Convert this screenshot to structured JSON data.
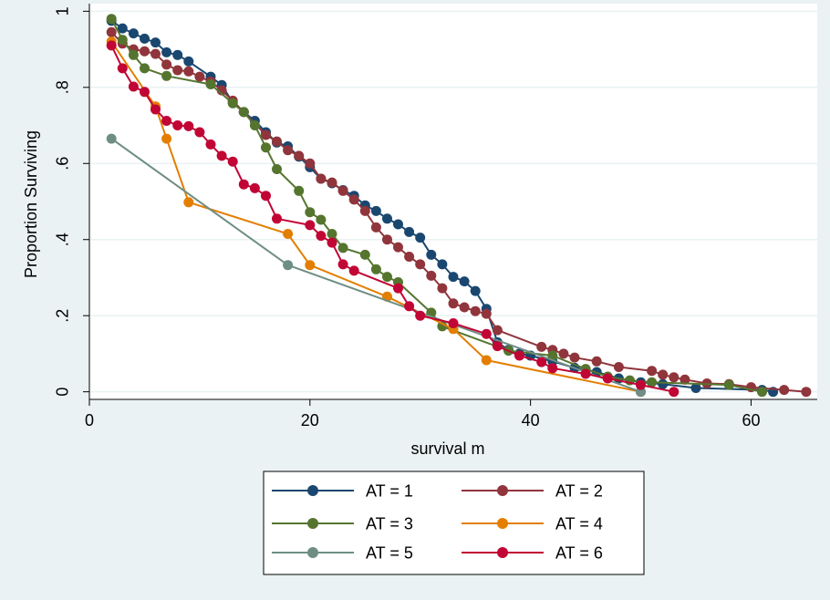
{
  "chart_data": {
    "type": "line",
    "title": "",
    "xlabel": "survival m",
    "ylabel": "Proportion Surviving",
    "xlim": [
      0,
      66
    ],
    "ylim": [
      -0.02,
      1.02
    ],
    "x_ticks": [
      {
        "value": 0,
        "label": "0"
      },
      {
        "value": 20,
        "label": "20"
      },
      {
        "value": 40,
        "label": "40"
      },
      {
        "value": 60,
        "label": "60"
      }
    ],
    "y_ticks": [
      {
        "value": 0,
        "label": "0"
      },
      {
        "value": 0.2,
        "label": ".2"
      },
      {
        "value": 0.4,
        "label": ".4"
      },
      {
        "value": 0.6,
        "label": ".6"
      },
      {
        "value": 0.8,
        "label": ".8"
      },
      {
        "value": 1,
        "label": "1"
      }
    ],
    "grid": true,
    "legend_position": "bottom",
    "series": [
      {
        "name": "AT = 1",
        "color": "#1a476f",
        "points": [
          [
            2,
            0.975
          ],
          [
            3,
            0.955
          ],
          [
            4,
            0.942
          ],
          [
            5,
            0.928
          ],
          [
            6,
            0.918
          ],
          [
            7,
            0.892
          ],
          [
            8,
            0.885
          ],
          [
            9,
            0.868
          ],
          [
            11,
            0.828
          ],
          [
            12,
            0.806
          ],
          [
            13,
            0.76
          ],
          [
            14,
            0.735
          ],
          [
            15,
            0.712
          ],
          [
            16,
            0.682
          ],
          [
            17,
            0.655
          ],
          [
            18,
            0.645
          ],
          [
            19,
            0.618
          ],
          [
            20,
            0.59
          ],
          [
            21,
            0.56
          ],
          [
            22,
            0.548
          ],
          [
            23,
            0.53
          ],
          [
            24,
            0.515
          ],
          [
            25,
            0.49
          ],
          [
            26,
            0.475
          ],
          [
            27,
            0.455
          ],
          [
            28,
            0.44
          ],
          [
            29,
            0.42
          ],
          [
            30,
            0.405
          ],
          [
            31,
            0.36
          ],
          [
            32,
            0.335
          ],
          [
            33,
            0.302
          ],
          [
            34,
            0.29
          ],
          [
            35,
            0.265
          ],
          [
            36,
            0.218
          ],
          [
            37,
            0.13
          ],
          [
            38,
            0.11
          ],
          [
            39,
            0.1
          ],
          [
            40,
            0.095
          ],
          [
            42,
            0.08
          ],
          [
            44,
            0.063
          ],
          [
            46,
            0.052
          ],
          [
            48,
            0.035
          ],
          [
            50,
            0.025
          ],
          [
            52,
            0.02
          ],
          [
            55,
            0.01
          ],
          [
            61,
            0.005
          ],
          [
            62,
            0.0
          ]
        ]
      },
      {
        "name": "AT = 2",
        "color": "#90353b",
        "points": [
          [
            2,
            0.945
          ],
          [
            3,
            0.915
          ],
          [
            4,
            0.9
          ],
          [
            5,
            0.895
          ],
          [
            6,
            0.888
          ],
          [
            7,
            0.86
          ],
          [
            8,
            0.845
          ],
          [
            9,
            0.842
          ],
          [
            10,
            0.828
          ],
          [
            11,
            0.815
          ],
          [
            12,
            0.792
          ],
          [
            13,
            0.765
          ],
          [
            14,
            0.735
          ],
          [
            16,
            0.675
          ],
          [
            17,
            0.658
          ],
          [
            18,
            0.635
          ],
          [
            19,
            0.62
          ],
          [
            20,
            0.6
          ],
          [
            21,
            0.56
          ],
          [
            22,
            0.55
          ],
          [
            23,
            0.528
          ],
          [
            24,
            0.505
          ],
          [
            25,
            0.475
          ],
          [
            26,
            0.432
          ],
          [
            27,
            0.4
          ],
          [
            28,
            0.38
          ],
          [
            29,
            0.355
          ],
          [
            30,
            0.335
          ],
          [
            31,
            0.305
          ],
          [
            32,
            0.272
          ],
          [
            33,
            0.232
          ],
          [
            34,
            0.222
          ],
          [
            35,
            0.212
          ],
          [
            36,
            0.205
          ],
          [
            37,
            0.162
          ],
          [
            41,
            0.118
          ],
          [
            42,
            0.11
          ],
          [
            43,
            0.1
          ],
          [
            44,
            0.09
          ],
          [
            46,
            0.08
          ],
          [
            48,
            0.065
          ],
          [
            51,
            0.055
          ],
          [
            52,
            0.045
          ],
          [
            53,
            0.038
          ],
          [
            54,
            0.032
          ],
          [
            56,
            0.022
          ],
          [
            58,
            0.02
          ],
          [
            60,
            0.012
          ],
          [
            63,
            0.005
          ],
          [
            65,
            0.0
          ]
        ]
      },
      {
        "name": "AT = 3",
        "color": "#55752f",
        "points": [
          [
            2,
            0.98
          ],
          [
            3,
            0.925
          ],
          [
            4,
            0.885
          ],
          [
            5,
            0.85
          ],
          [
            7,
            0.83
          ],
          [
            11,
            0.808
          ],
          [
            13,
            0.758
          ],
          [
            14,
            0.735
          ],
          [
            15,
            0.7
          ],
          [
            16,
            0.642
          ],
          [
            17,
            0.585
          ],
          [
            19,
            0.528
          ],
          [
            20,
            0.472
          ],
          [
            21,
            0.452
          ],
          [
            22,
            0.415
          ],
          [
            23,
            0.378
          ],
          [
            25,
            0.36
          ],
          [
            26,
            0.322
          ],
          [
            27,
            0.302
          ],
          [
            28,
            0.288
          ],
          [
            31,
            0.208
          ],
          [
            32,
            0.172
          ],
          [
            38,
            0.108
          ],
          [
            42,
            0.095
          ],
          [
            45,
            0.06
          ],
          [
            47,
            0.04
          ],
          [
            49,
            0.03
          ],
          [
            51,
            0.025
          ],
          [
            58,
            0.018
          ],
          [
            61,
            0.0
          ]
        ]
      },
      {
        "name": "AT = 4",
        "color": "#e37e00",
        "points": [
          [
            2,
            0.92
          ],
          [
            6,
            0.75
          ],
          [
            7,
            0.665
          ],
          [
            9,
            0.498
          ],
          [
            18,
            0.415
          ],
          [
            20,
            0.333
          ],
          [
            27,
            0.25
          ],
          [
            33,
            0.165
          ],
          [
            36,
            0.083
          ],
          [
            50,
            0.0
          ]
        ]
      },
      {
        "name": "AT = 5",
        "color": "#6e8e84",
        "points": [
          [
            2,
            0.665
          ],
          [
            18,
            0.333
          ],
          [
            50,
            0.0
          ]
        ]
      },
      {
        "name": "AT = 6",
        "color": "#c10534",
        "points": [
          [
            2,
            0.91
          ],
          [
            3,
            0.85
          ],
          [
            4,
            0.802
          ],
          [
            5,
            0.788
          ],
          [
            6,
            0.742
          ],
          [
            7,
            0.712
          ],
          [
            8,
            0.7
          ],
          [
            9,
            0.698
          ],
          [
            10,
            0.682
          ],
          [
            11,
            0.65
          ],
          [
            12,
            0.62
          ],
          [
            13,
            0.605
          ],
          [
            14,
            0.545
          ],
          [
            15,
            0.535
          ],
          [
            16,
            0.515
          ],
          [
            17,
            0.455
          ],
          [
            20,
            0.438
          ],
          [
            21,
            0.41
          ],
          [
            22,
            0.392
          ],
          [
            23,
            0.335
          ],
          [
            24,
            0.318
          ],
          [
            28,
            0.272
          ],
          [
            29,
            0.225
          ],
          [
            30,
            0.2
          ],
          [
            33,
            0.18
          ],
          [
            36,
            0.152
          ],
          [
            37,
            0.12
          ],
          [
            39,
            0.095
          ],
          [
            41,
            0.078
          ],
          [
            42,
            0.062
          ],
          [
            45,
            0.047
          ],
          [
            47,
            0.035
          ],
          [
            50,
            0.018
          ],
          [
            53,
            0.0
          ]
        ]
      }
    ]
  }
}
